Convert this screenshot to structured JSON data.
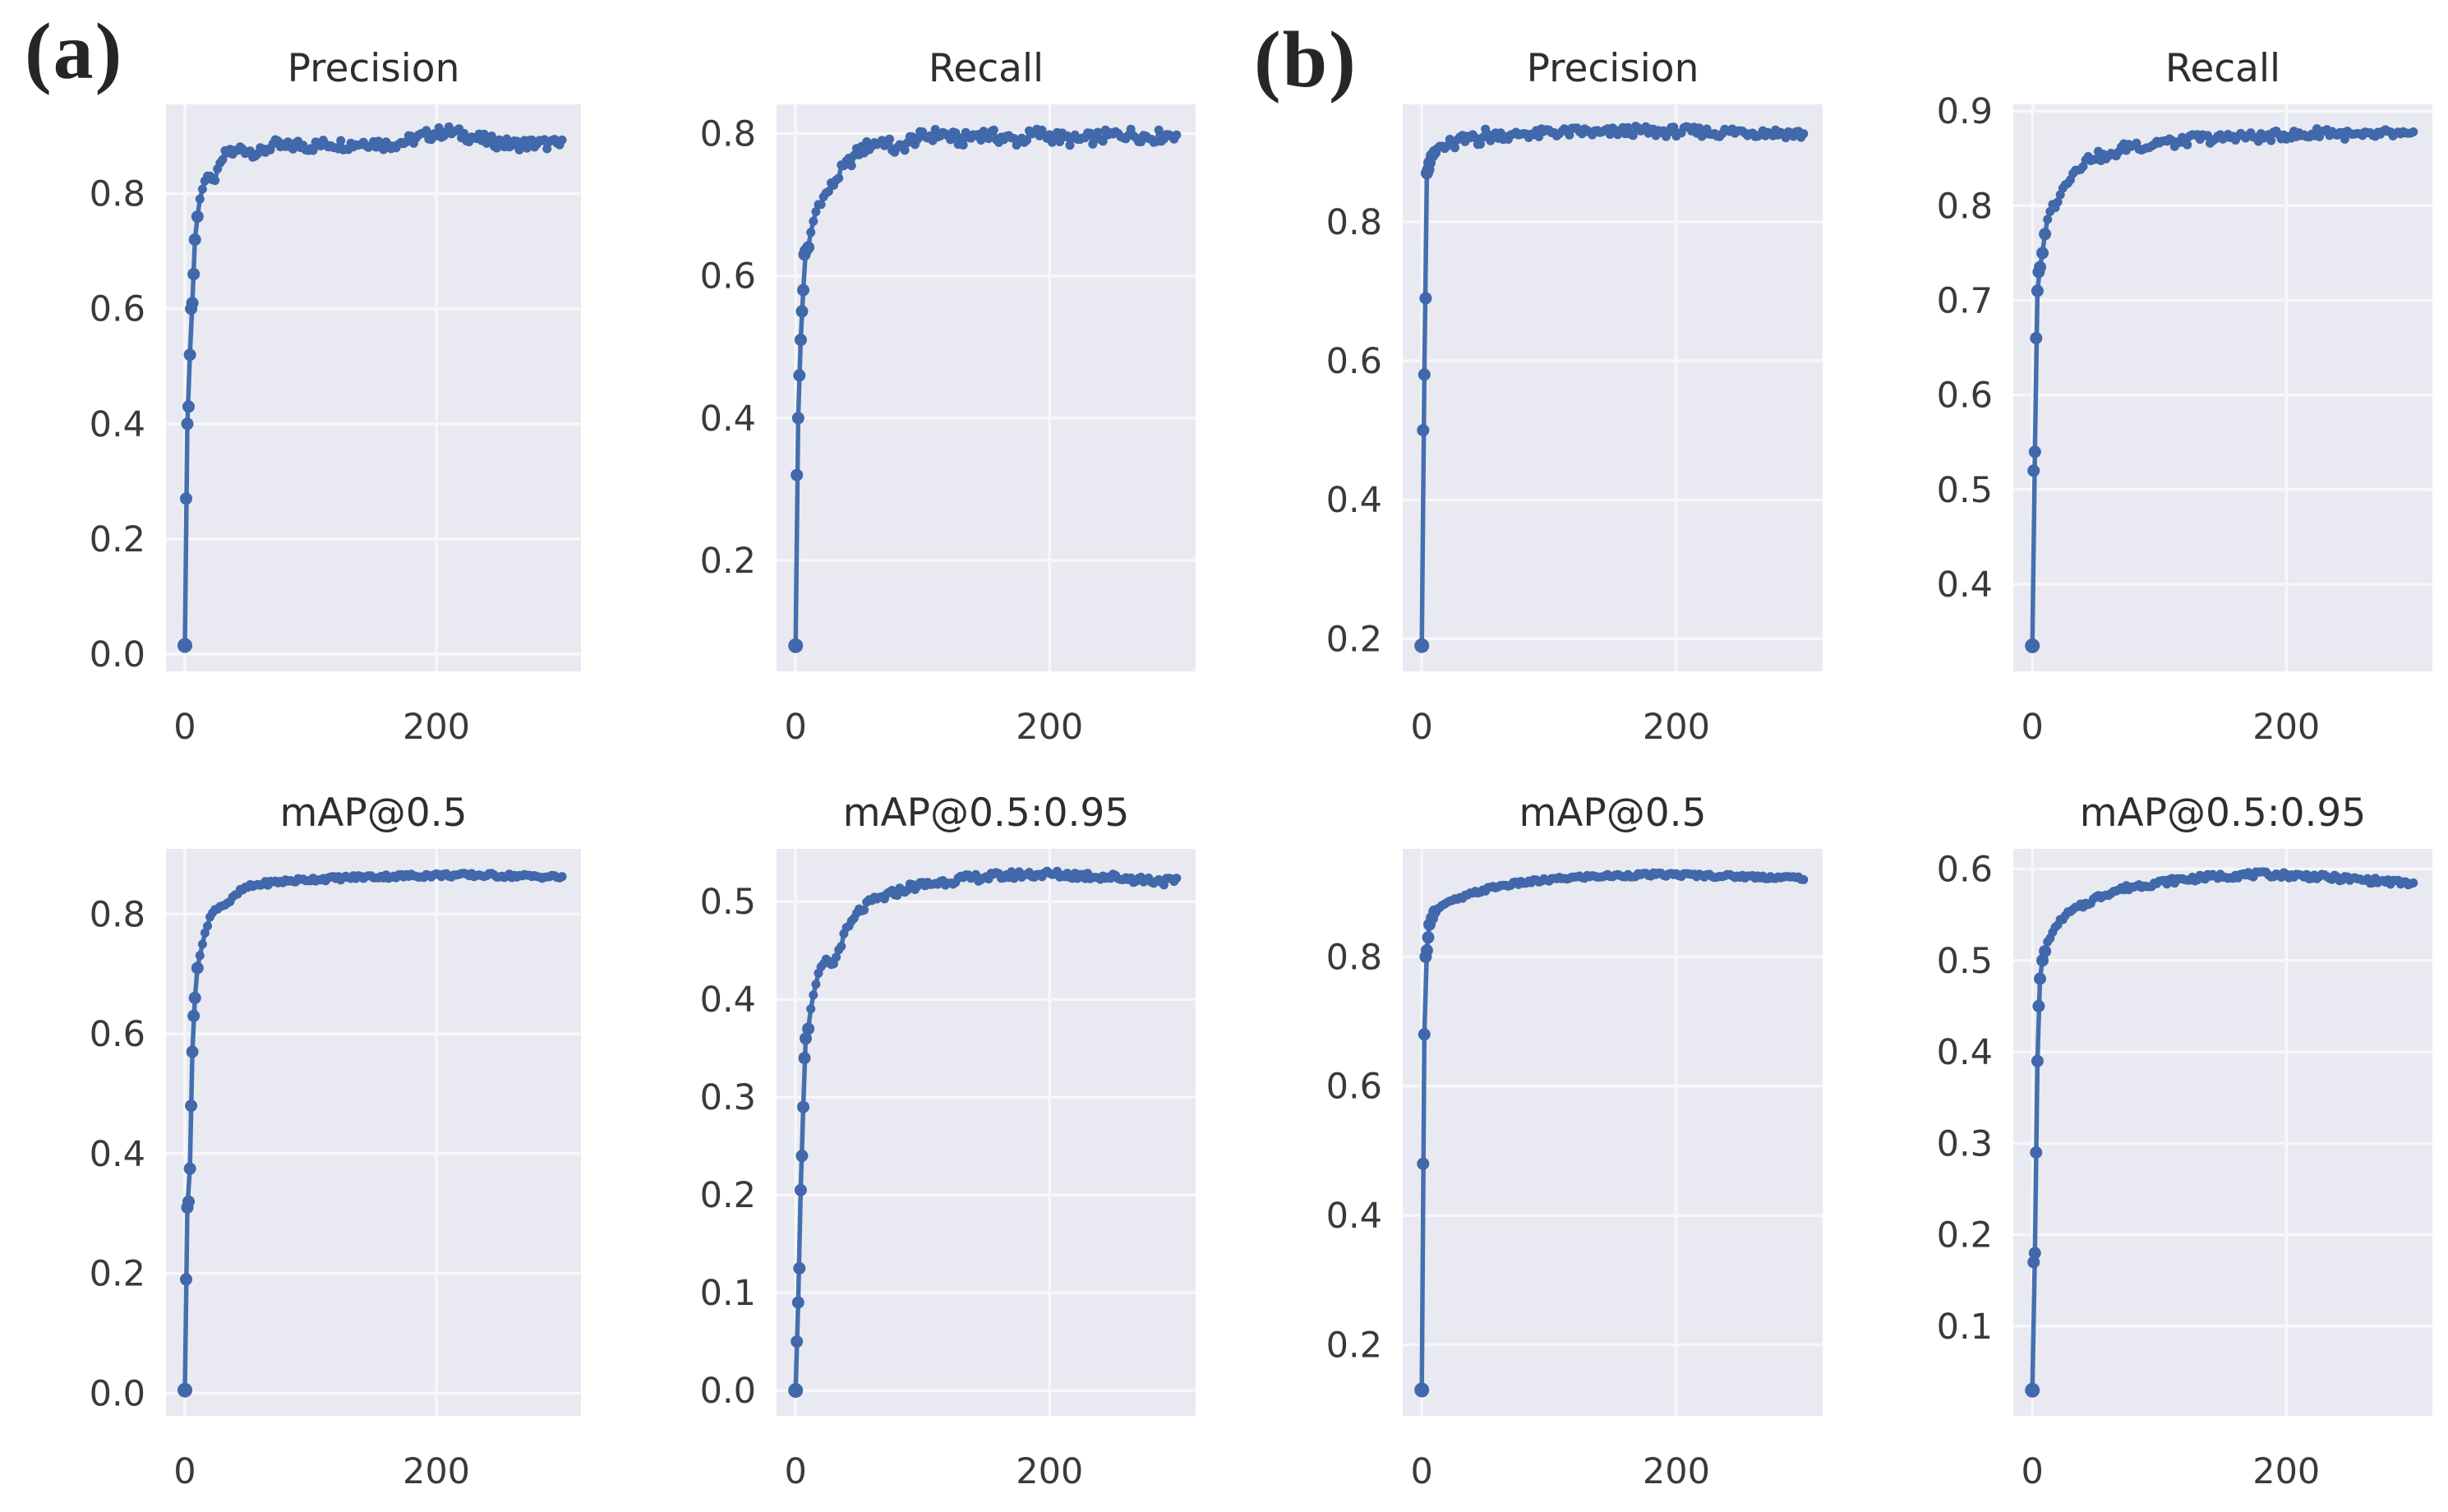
{
  "figure": {
    "panel_labels": {
      "a": "(a)",
      "b": "(b)"
    }
  },
  "colors": {
    "line": "#4470af",
    "marker": "#4068aa",
    "plot_bg": "#e9e9f1",
    "grid": "#f7f7fa",
    "text": "#2e2e2e",
    "tick_text": "#3a3a3a"
  },
  "chart_data": [
    {
      "type": "line",
      "panel": "a",
      "title": "Precision",
      "xlabel": "",
      "ylabel": "",
      "xlim": [
        -15,
        315
      ],
      "ylim": [
        -0.03,
        0.955
      ],
      "xticks": [
        0,
        200
      ],
      "xtick_labels": [
        "0",
        "200"
      ],
      "yticks": [
        0.0,
        0.2,
        0.4,
        0.6,
        0.8
      ],
      "ytick_labels": [
        "0.0",
        "0.2",
        "0.4",
        "0.6",
        "0.8"
      ],
      "grid": true,
      "legend": "none",
      "noise": 0.01,
      "x": [
        0,
        1,
        2,
        3,
        4,
        5,
        6,
        7,
        8,
        10,
        12,
        15,
        18,
        22,
        26,
        30,
        35,
        40,
        45,
        50,
        60,
        70,
        80,
        90,
        100,
        115,
        130,
        145,
        160,
        175,
        190,
        200,
        210,
        225,
        240,
        260,
        280,
        300
      ],
      "y": [
        0.015,
        0.27,
        0.4,
        0.43,
        0.52,
        0.6,
        0.61,
        0.66,
        0.72,
        0.76,
        0.79,
        0.82,
        0.83,
        0.82,
        0.835,
        0.86,
        0.875,
        0.87,
        0.88,
        0.875,
        0.87,
        0.885,
        0.88,
        0.885,
        0.882,
        0.887,
        0.885,
        0.89,
        0.885,
        0.89,
        0.9,
        0.905,
        0.908,
        0.9,
        0.892,
        0.885,
        0.887,
        0.885
      ]
    },
    {
      "type": "line",
      "panel": "a",
      "title": "Recall",
      "xlabel": "",
      "ylabel": "",
      "xlim": [
        -15,
        315
      ],
      "ylim": [
        0.044,
        0.841
      ],
      "xticks": [
        0,
        200
      ],
      "xtick_labels": [
        "0",
        "200"
      ],
      "yticks": [
        0.2,
        0.4,
        0.6,
        0.8
      ],
      "ytick_labels": [
        "0.2",
        "0.4",
        "0.6",
        "0.8"
      ],
      "grid": true,
      "legend": "none",
      "noise": 0.009,
      "x": [
        0,
        1,
        2,
        3,
        4,
        5,
        6,
        7,
        8,
        10,
        12,
        15,
        18,
        22,
        26,
        30,
        35,
        40,
        45,
        50,
        55,
        60,
        70,
        80,
        90,
        100,
        115,
        130,
        145,
        160,
        175,
        190,
        205,
        220,
        240,
        260,
        280,
        300
      ],
      "y": [
        0.08,
        0.32,
        0.4,
        0.46,
        0.51,
        0.55,
        0.58,
        0.63,
        0.635,
        0.64,
        0.66,
        0.685,
        0.7,
        0.71,
        0.72,
        0.73,
        0.745,
        0.755,
        0.765,
        0.775,
        0.78,
        0.785,
        0.79,
        0.775,
        0.79,
        0.795,
        0.8,
        0.79,
        0.8,
        0.795,
        0.79,
        0.8,
        0.795,
        0.79,
        0.795,
        0.8,
        0.795,
        0.8
      ]
    },
    {
      "type": "line",
      "panel": "b",
      "title": "Precision",
      "xlabel": "",
      "ylabel": "",
      "xlim": [
        -15,
        315
      ],
      "ylim": [
        0.153,
        0.969
      ],
      "xticks": [
        0,
        200
      ],
      "xtick_labels": [
        "0",
        "200"
      ],
      "yticks": [
        0.2,
        0.4,
        0.6,
        0.8
      ],
      "ytick_labels": [
        "0.2",
        "0.4",
        "0.6",
        "0.8"
      ],
      "grid": true,
      "legend": "none",
      "noise": 0.007,
      "x": [
        0,
        1,
        2,
        3,
        4,
        5,
        6,
        8,
        10,
        12,
        15,
        18,
        22,
        26,
        30,
        35,
        40,
        45,
        50,
        55,
        60,
        70,
        80,
        90,
        100,
        110,
        125,
        140,
        155,
        170,
        185,
        200,
        215,
        230,
        245,
        260,
        280,
        300
      ],
      "y": [
        0.19,
        0.5,
        0.58,
        0.69,
        0.87,
        0.875,
        0.885,
        0.895,
        0.9,
        0.905,
        0.91,
        0.905,
        0.915,
        0.91,
        0.92,
        0.915,
        0.925,
        0.915,
        0.928,
        0.92,
        0.927,
        0.922,
        0.928,
        0.925,
        0.93,
        0.928,
        0.93,
        0.927,
        0.93,
        0.931,
        0.929,
        0.93,
        0.93,
        0.928,
        0.93,
        0.929,
        0.928,
        0.926
      ]
    },
    {
      "type": "line",
      "panel": "b",
      "title": "Recall",
      "xlabel": "",
      "ylabel": "",
      "xlim": [
        -15,
        315
      ],
      "ylim": [
        0.308,
        0.907
      ],
      "xticks": [
        0,
        200
      ],
      "xtick_labels": [
        "0",
        "200"
      ],
      "yticks": [
        0.4,
        0.5,
        0.6,
        0.7,
        0.8,
        0.9
      ],
      "ytick_labels": [
        "0.4",
        "0.5",
        "0.6",
        "0.7",
        "0.8",
        "0.9"
      ],
      "grid": true,
      "legend": "none",
      "noise": 0.005,
      "x": [
        0,
        1,
        2,
        3,
        4,
        5,
        6,
        8,
        10,
        12,
        15,
        18,
        22,
        26,
        30,
        35,
        40,
        45,
        50,
        60,
        70,
        80,
        90,
        100,
        115,
        130,
        145,
        160,
        180,
        200,
        215,
        230,
        245,
        260,
        280,
        300
      ],
      "y": [
        0.335,
        0.52,
        0.54,
        0.66,
        0.71,
        0.73,
        0.735,
        0.75,
        0.77,
        0.785,
        0.8,
        0.8,
        0.81,
        0.825,
        0.83,
        0.84,
        0.845,
        0.85,
        0.853,
        0.85,
        0.86,
        0.865,
        0.862,
        0.868,
        0.866,
        0.872,
        0.87,
        0.874,
        0.872,
        0.875,
        0.874,
        0.879,
        0.875,
        0.873,
        0.876,
        0.873
      ]
    },
    {
      "type": "line",
      "panel": "a",
      "title": "mAP@0.5",
      "xlabel": "",
      "ylabel": "",
      "xlim": [
        -15,
        315
      ],
      "ylim": [
        -0.038,
        0.909
      ],
      "xticks": [
        0,
        200
      ],
      "xtick_labels": [
        "0",
        "200"
      ],
      "yticks": [
        0.0,
        0.2,
        0.4,
        0.6,
        0.8
      ],
      "ytick_labels": [
        "0.0",
        "0.2",
        "0.4",
        "0.6",
        "0.8"
      ],
      "grid": true,
      "legend": "none",
      "noise": 0.0035,
      "x": [
        0,
        1,
        2,
        3,
        4,
        5,
        6,
        7,
        8,
        10,
        12,
        14,
        16,
        18,
        20,
        25,
        30,
        35,
        40,
        45,
        50,
        60,
        70,
        80,
        100,
        120,
        140,
        160,
        180,
        200,
        220,
        240,
        260,
        280,
        300
      ],
      "y": [
        0.005,
        0.19,
        0.31,
        0.32,
        0.375,
        0.48,
        0.57,
        0.63,
        0.66,
        0.71,
        0.73,
        0.75,
        0.77,
        0.78,
        0.795,
        0.81,
        0.815,
        0.82,
        0.83,
        0.84,
        0.845,
        0.85,
        0.853,
        0.855,
        0.858,
        0.86,
        0.862,
        0.863,
        0.864,
        0.865,
        0.865,
        0.865,
        0.864,
        0.863,
        0.862
      ]
    },
    {
      "type": "line",
      "panel": "a",
      "title": "mAP@0.5:0.95",
      "xlabel": "",
      "ylabel": "",
      "xlim": [
        -15,
        315
      ],
      "ylim": [
        -0.026,
        0.554
      ],
      "xticks": [
        0,
        200
      ],
      "xtick_labels": [
        "0",
        "200"
      ],
      "yticks": [
        0.0,
        0.1,
        0.2,
        0.3,
        0.4,
        0.5
      ],
      "ytick_labels": [
        "0.0",
        "0.1",
        "0.2",
        "0.3",
        "0.4",
        "0.5"
      ],
      "grid": true,
      "legend": "none",
      "noise": 0.004,
      "x": [
        0,
        1,
        2,
        3,
        4,
        5,
        6,
        7,
        8,
        10,
        12,
        15,
        18,
        21,
        25,
        30,
        35,
        40,
        45,
        50,
        55,
        60,
        70,
        80,
        90,
        100,
        115,
        130,
        145,
        160,
        180,
        200,
        220,
        240,
        260,
        280,
        300
      ],
      "y": [
        0.0,
        0.05,
        0.09,
        0.125,
        0.205,
        0.24,
        0.29,
        0.34,
        0.36,
        0.37,
        0.39,
        0.41,
        0.425,
        0.435,
        0.44,
        0.435,
        0.455,
        0.47,
        0.48,
        0.49,
        0.495,
        0.5,
        0.505,
        0.51,
        0.515,
        0.517,
        0.52,
        0.523,
        0.525,
        0.526,
        0.528,
        0.528,
        0.527,
        0.526,
        0.524,
        0.522,
        0.52
      ]
    },
    {
      "type": "line",
      "panel": "b",
      "title": "mAP@0.5",
      "xlabel": "",
      "ylabel": "",
      "xlim": [
        -15,
        315
      ],
      "ylim": [
        0.09,
        0.967
      ],
      "xticks": [
        0,
        200
      ],
      "xtick_labels": [
        "0",
        "200"
      ],
      "yticks": [
        0.2,
        0.4,
        0.6,
        0.8
      ],
      "ytick_labels": [
        "0.2",
        "0.4",
        "0.6",
        "0.8"
      ],
      "grid": true,
      "legend": "none",
      "noise": 0.0028,
      "x": [
        0,
        1,
        2,
        3,
        4,
        5,
        6,
        8,
        10,
        12,
        15,
        18,
        22,
        26,
        30,
        35,
        40,
        50,
        60,
        70,
        80,
        90,
        100,
        115,
        130,
        145,
        160,
        180,
        200,
        220,
        240,
        260,
        280,
        300
      ],
      "y": [
        0.13,
        0.48,
        0.68,
        0.8,
        0.81,
        0.83,
        0.85,
        0.86,
        0.87,
        0.874,
        0.878,
        0.882,
        0.885,
        0.888,
        0.89,
        0.894,
        0.898,
        0.904,
        0.909,
        0.912,
        0.915,
        0.917,
        0.919,
        0.922,
        0.924,
        0.925,
        0.926,
        0.927,
        0.927,
        0.926,
        0.925,
        0.924,
        0.923,
        0.922
      ]
    },
    {
      "type": "line",
      "panel": "b",
      "title": "mAP@0.5:0.95",
      "xlabel": "",
      "ylabel": "",
      "xlim": [
        -15,
        315
      ],
      "ylim": [
        0.002,
        0.622
      ],
      "xticks": [
        0,
        200
      ],
      "xtick_labels": [
        "0",
        "200"
      ],
      "yticks": [
        0.1,
        0.2,
        0.3,
        0.4,
        0.5,
        0.6
      ],
      "ytick_labels": [
        "0.1",
        "0.2",
        "0.3",
        "0.4",
        "0.5",
        "0.6"
      ],
      "grid": true,
      "legend": "none",
      "noise": 0.003,
      "x": [
        0,
        1,
        2,
        3,
        4,
        5,
        6,
        8,
        10,
        12,
        16,
        20,
        25,
        30,
        35,
        40,
        50,
        60,
        70,
        80,
        90,
        100,
        115,
        130,
        145,
        160,
        175,
        190,
        205,
        220,
        240,
        260,
        280,
        300
      ],
      "y": [
        0.03,
        0.17,
        0.18,
        0.29,
        0.39,
        0.45,
        0.48,
        0.5,
        0.51,
        0.52,
        0.53,
        0.54,
        0.548,
        0.553,
        0.557,
        0.56,
        0.568,
        0.574,
        0.578,
        0.581,
        0.583,
        0.585,
        0.588,
        0.59,
        0.592,
        0.593,
        0.594,
        0.594,
        0.593,
        0.592,
        0.59,
        0.588,
        0.586,
        0.584
      ]
    }
  ]
}
